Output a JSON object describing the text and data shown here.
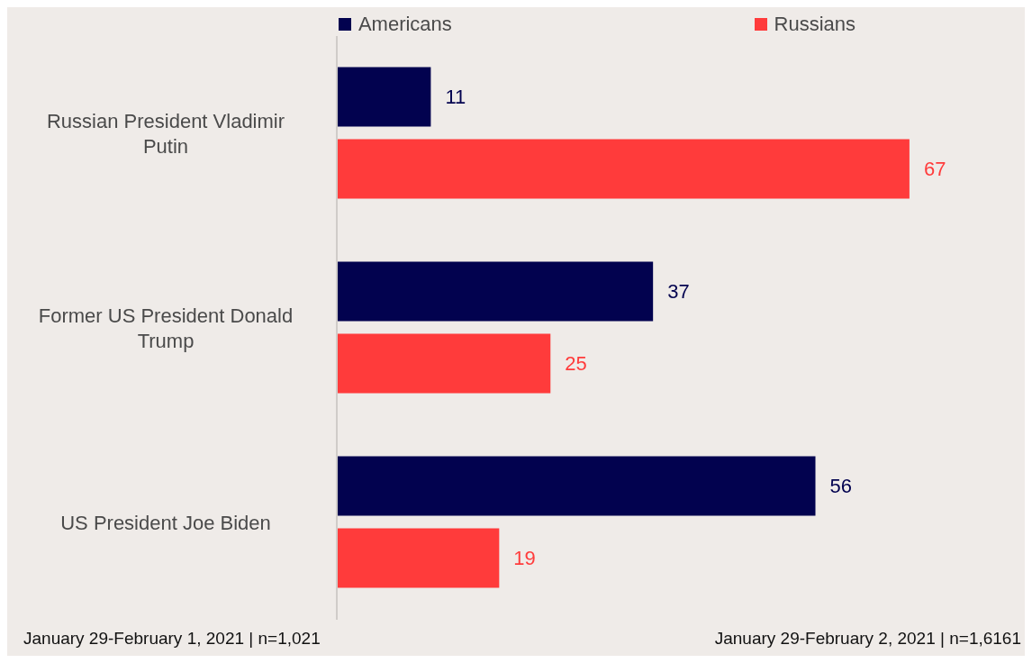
{
  "chart_data": {
    "type": "bar",
    "orientation": "horizontal",
    "data_labels": true,
    "legend": "top",
    "grid": false,
    "categories": [
      "Russian President Vladimir Putin",
      "Former US President Donald Trump",
      "US President Joe Biden"
    ],
    "series": [
      {
        "name": "Americans",
        "color": "#02024f",
        "values": [
          11,
          37,
          56
        ]
      },
      {
        "name": "Russians",
        "color": "#ff3b3b",
        "values": [
          67,
          25,
          19
        ]
      }
    ],
    "annotations": [
      "January 29-February 1, 2021 | n=1,021",
      "January 29-February 2, 2021 | n=1,6161"
    ]
  }
}
